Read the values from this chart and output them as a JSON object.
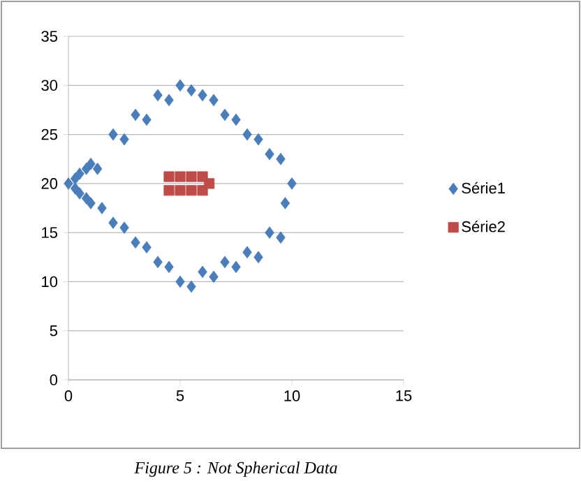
{
  "chart_data": {
    "type": "scatter",
    "xlim": [
      0,
      15
    ],
    "ylim": [
      0,
      35
    ],
    "xticks": [
      0,
      5,
      10,
      15
    ],
    "yticks": [
      0,
      5,
      10,
      15,
      20,
      25,
      30,
      35
    ],
    "grid": "y",
    "legend": "right",
    "annotations": [
      "Figure 5 : Not Spherical Data"
    ],
    "series": [
      {
        "name": "Série1",
        "color": "#4a7ebb",
        "marker": "diamond",
        "x": [
          0,
          0.3,
          0.5,
          0.8,
          1,
          1.3,
          0.3,
          0.5,
          0.8,
          1,
          1.5,
          2,
          2.5,
          3,
          3.5,
          4,
          4.5,
          5,
          5.5,
          6,
          6.5,
          7,
          7.5,
          8,
          8.5,
          9,
          9.5,
          10,
          9.7,
          9.5,
          9,
          8.5,
          8,
          7.5,
          7,
          6.5,
          6,
          5.5,
          5,
          4.5,
          4,
          3.5,
          3,
          2.5,
          2
        ],
        "values": [
          20,
          20.5,
          21,
          21.5,
          22,
          21.5,
          19.5,
          19,
          18.5,
          18,
          17.5,
          25,
          24.5,
          27,
          26.5,
          29,
          28.5,
          30,
          29.5,
          29,
          28.5,
          27,
          26.5,
          25,
          24.5,
          23,
          22.5,
          20,
          18,
          14.5,
          15,
          12.5,
          13,
          11.5,
          12,
          10.5,
          11,
          9.5,
          10,
          11.5,
          12,
          13.5,
          14,
          15.5,
          16
        ]
      },
      {
        "name": "Série2",
        "color": "#be4b48",
        "marker": "square",
        "x": [
          4.5,
          5,
          5.5,
          6,
          4.5,
          5,
          5.5,
          6,
          6.3
        ],
        "values": [
          19.3,
          19.3,
          19.3,
          19.3,
          20.7,
          20.7,
          20.7,
          20.7,
          20
        ]
      }
    ]
  }
}
